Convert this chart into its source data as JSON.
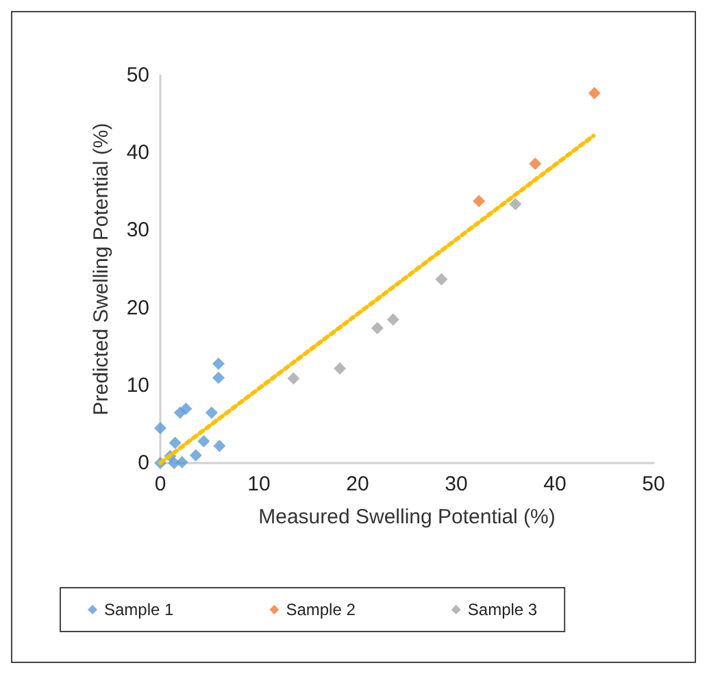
{
  "chart_data": {
    "type": "scatter",
    "xlabel": "Measured Swelling Potential (%)",
    "ylabel": "Predicted Swelling Potential (%)",
    "xlim": [
      0,
      50
    ],
    "xticks": [
      0,
      10,
      20,
      30,
      40,
      50
    ],
    "ylim": [
      0,
      50
    ],
    "yticks": [
      0,
      10,
      20,
      30,
      40,
      50
    ],
    "grid": false,
    "legend": "bottom",
    "marker": "diamond",
    "series": [
      {
        "name": "Sample 1",
        "color": "#5b9bd5",
        "x": [
          0,
          0,
          1.0,
          1.4,
          1.5,
          2.2,
          2.0,
          2.6,
          3.6,
          4.4,
          5.2,
          5.9,
          6.0,
          5.9,
          5.9
        ],
        "values": [
          0,
          4.5,
          0.9,
          0,
          2.6,
          0.1,
          6.5,
          7.0,
          1.0,
          2.8,
          6.5,
          null,
          2.2,
          11.0,
          12.8
        ]
      },
      {
        "name": "Sample 2",
        "color": "#ed7d31",
        "x": [
          32.3,
          38.0,
          44.0
        ],
        "values": [
          33.8,
          38.6,
          47.7
        ]
      },
      {
        "name": "Sample 3",
        "color": "#a5a5a5",
        "x": [
          13.5,
          18.2,
          22.0,
          23.6,
          28.5,
          36.0
        ],
        "values": [
          10.9,
          12.2,
          17.4,
          18.5,
          23.7,
          33.4
        ]
      },
      {
        "type": "line",
        "color": "#ffc000",
        "line_style": "dotted",
        "marker": "none",
        "x": [
          0,
          43.9
        ],
        "values": [
          0,
          42.2
        ]
      }
    ]
  }
}
